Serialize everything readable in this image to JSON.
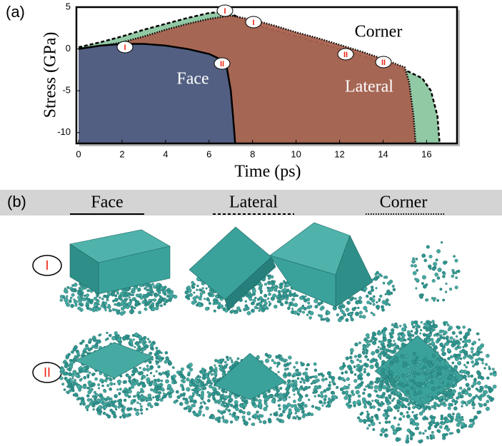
{
  "panel_label": "(a)",
  "chart_data": {
    "type": "area",
    "xlabel": "Time (ps)",
    "ylabel": "Stress (GPa)",
    "xlim": [
      -0.1,
      17.4
    ],
    "ylim": [
      -11.3,
      5
    ],
    "xticks": [
      0,
      2,
      4,
      6,
      8,
      10,
      12,
      14,
      16
    ],
    "yticks": [
      -10,
      -5,
      0,
      5
    ],
    "series": [
      {
        "name": "Lateral",
        "color": "#7fbf95",
        "line": "dashed",
        "x": [
          0,
          1,
          2,
          3,
          4,
          5,
          6,
          6.5,
          7,
          8,
          9,
          10,
          11,
          12,
          13,
          14,
          15,
          15.8,
          16.2,
          16.5,
          16.6
        ],
        "values": [
          0.2,
          0.8,
          1.5,
          2.3,
          3.0,
          3.7,
          4.3,
          4.4,
          4.2,
          3.0,
          2.2,
          1.5,
          0.8,
          0,
          -0.8,
          -1.6,
          -2.5,
          -3.5,
          -5,
          -8,
          -11.3
        ]
      },
      {
        "name": "Corner",
        "color": "#a8614f",
        "line": "dotted",
        "x": [
          0,
          1,
          2,
          3,
          4,
          5,
          6,
          7,
          8,
          9,
          10,
          11,
          12,
          13,
          14,
          15,
          15.2,
          15.4,
          15.5
        ],
        "values": [
          0,
          0.3,
          0.8,
          1.5,
          2.3,
          3.0,
          3.6,
          4.0,
          3.5,
          2.8,
          2.0,
          1.3,
          0.5,
          -0.3,
          -1.2,
          -2.2,
          -4,
          -8,
          -11.3
        ]
      },
      {
        "name": "Face",
        "color": "#4d5f85",
        "line": "solid",
        "x": [
          0,
          1,
          2,
          3,
          4,
          5,
          6,
          6.5,
          6.8,
          7.0,
          7.1,
          7.2
        ],
        "values": [
          0,
          0.4,
          0.6,
          0.6,
          0.4,
          0.0,
          -0.6,
          -1.2,
          -2,
          -5,
          -8,
          -11.3
        ]
      }
    ],
    "annotations": [
      "I",
      "I",
      "I",
      "II",
      "II",
      "II"
    ]
  },
  "panel_b": {
    "label": "(b)",
    "columns": [
      "Face",
      "Lateral",
      "Corner"
    ],
    "rows": [
      "I",
      "II"
    ]
  }
}
